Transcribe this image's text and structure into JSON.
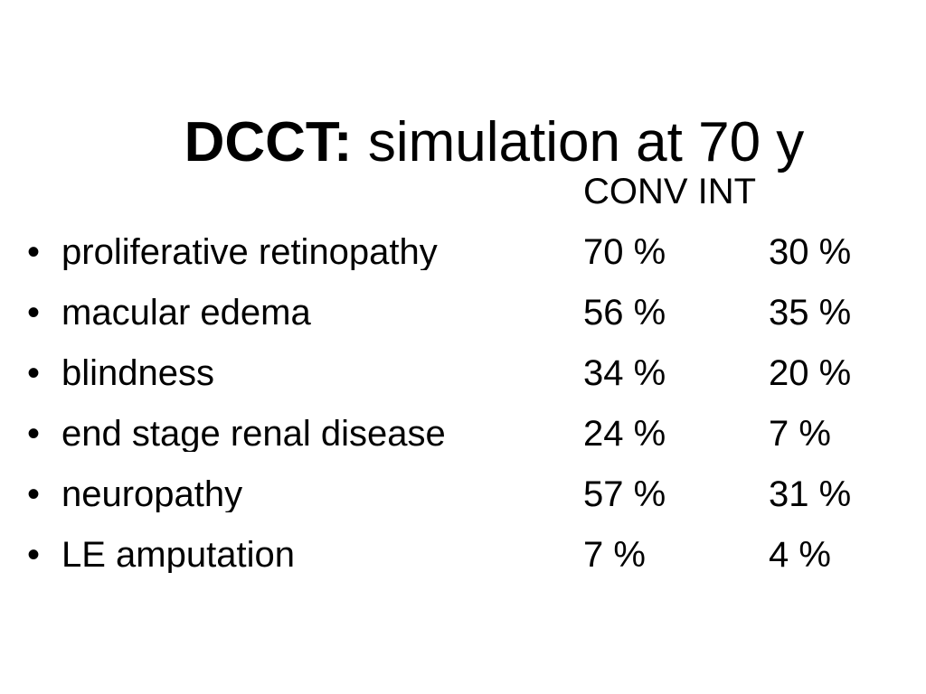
{
  "slide": {
    "title": {
      "emphasis": "DCCT:",
      "rest": " simulation at 70 y"
    },
    "table": {
      "columns_header": "CONV INT",
      "bullet_glyph": "•",
      "rows": [
        {
          "label": "proliferative retinopathy",
          "conv": "70 %",
          "int": "30 %"
        },
        {
          "label": "macular edema",
          "conv": "56 %",
          "int": "35 %"
        },
        {
          "label": "blindness",
          "conv": "34 %",
          "int": "20 %"
        },
        {
          "label": "end stage renal disease",
          "conv": "24 %",
          "int": "7 %"
        },
        {
          "label": "neuropathy",
          "conv": "57 %",
          "int": "31 %"
        },
        {
          "label": "LE amputation",
          "conv": "7 %",
          "int": "4 %"
        }
      ]
    },
    "colors": {
      "background": "#ffffff",
      "text": "#000000"
    }
  }
}
